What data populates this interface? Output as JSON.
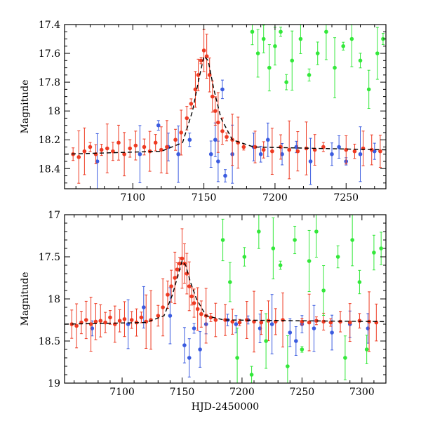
{
  "chart_data": [
    {
      "type": "scatter",
      "xlabel": "",
      "ylabel": "Magnitude",
      "xlim": [
        7052,
        7278
      ],
      "ylim": [
        18.54,
        17.4
      ],
      "inverted_y": true,
      "xticks": [
        7100,
        7150,
        7200,
        7250
      ],
      "yticks": [
        17.4,
        17.6,
        17.8,
        18,
        18.2,
        18.4
      ],
      "ytick_labels": [
        "17.4",
        "17.6",
        "17.8",
        "18",
        "18.2",
        "18.4"
      ],
      "grid": false,
      "legend": "none",
      "series": [
        {
          "color": "#3a5be0",
          "x": [
            7075,
            7105,
            7118,
            7125,
            7132,
            7140,
            7155,
            7158,
            7160,
            7163,
            7165,
            7170,
            7185,
            7190,
            7195,
            7205,
            7215,
            7225,
            7240,
            7245,
            7250,
            7260,
            7270
          ],
          "y": [
            18.35,
            18.3,
            18.1,
            18.25,
            18.3,
            18.2,
            18.3,
            18.2,
            18.35,
            17.85,
            18.45,
            18.3,
            18.25,
            18.3,
            18.2,
            18.3,
            18.25,
            18.35,
            18.3,
            18.25,
            18.35,
            18.3,
            18.28
          ]
        },
        {
          "color": "#ee3a22",
          "x": [
            7058,
            7062,
            7066,
            7070,
            7074,
            7078,
            7082,
            7086,
            7090,
            7094,
            7098,
            7102,
            7108,
            7112,
            7116,
            7120,
            7124,
            7130,
            7134,
            7138,
            7141,
            7144,
            7146,
            7148,
            7150,
            7152,
            7154,
            7156,
            7158,
            7160,
            7163,
            7166,
            7170,
            7174,
            7178,
            7186,
            7192,
            7198,
            7204,
            7210,
            7216,
            7222,
            7228,
            7234,
            7250,
            7256,
            7262,
            7268,
            7274
          ],
          "y": [
            18.3,
            18.32,
            18.28,
            18.25,
            18.3,
            18.27,
            18.26,
            18.28,
            18.22,
            18.3,
            18.26,
            18.24,
            18.25,
            18.28,
            18.22,
            18.27,
            18.25,
            18.2,
            18.15,
            18.05,
            17.95,
            17.85,
            17.75,
            17.65,
            17.58,
            17.62,
            17.75,
            17.9,
            18.0,
            18.08,
            18.14,
            18.18,
            18.2,
            18.22,
            18.25,
            18.25,
            18.27,
            18.28,
            18.25,
            18.27,
            18.28,
            18.26,
            18.27,
            18.25,
            18.27,
            18.28,
            18.26,
            18.27,
            18.28
          ]
        },
        {
          "color": "#33e83a",
          "x": [
            7184,
            7188,
            7192,
            7196,
            7200,
            7204,
            7208,
            7212,
            7218,
            7224,
            7230,
            7236,
            7242,
            7248,
            7254,
            7260,
            7266,
            7272,
            7276
          ],
          "y": [
            17.45,
            17.6,
            17.5,
            17.7,
            17.55,
            17.45,
            17.8,
            17.65,
            17.5,
            17.75,
            17.6,
            17.45,
            17.7,
            17.55,
            17.5,
            17.65,
            17.85,
            17.6,
            17.5
          ]
        }
      ],
      "model": {
        "x": [
          7052,
          7120,
          7135,
          7142,
          7146,
          7150,
          7153,
          7157,
          7162,
          7170,
          7185,
          7278
        ],
        "y": [
          18.3,
          18.28,
          18.22,
          18.0,
          17.8,
          17.62,
          17.65,
          17.85,
          18.05,
          18.2,
          18.25,
          18.27
        ]
      }
    },
    {
      "type": "scatter",
      "xlabel": "HJD-2450000",
      "ylabel": "Magnitude",
      "xlim": [
        7052,
        7320
      ],
      "ylim": [
        19,
        17
      ],
      "inverted_y": true,
      "xticks": [
        7100,
        7150,
        7200,
        7250,
        7300
      ],
      "yticks": [
        17,
        17.5,
        18,
        18.5,
        19
      ],
      "ytick_labels": [
        "17",
        "17.5",
        "18",
        "18.5",
        "19"
      ],
      "grid": false,
      "legend": "none",
      "series": [
        {
          "color": "#3a5be0",
          "x": [
            7075,
            7105,
            7118,
            7140,
            7152,
            7156,
            7160,
            7165,
            7170,
            7188,
            7195,
            7205,
            7215,
            7225,
            7240,
            7245,
            7250,
            7260,
            7275,
            7290,
            7305
          ],
          "y": [
            18.35,
            18.3,
            18.1,
            18.2,
            18.55,
            18.7,
            18.35,
            18.6,
            18.3,
            18.25,
            18.3,
            18.25,
            18.35,
            18.3,
            18.4,
            18.5,
            18.3,
            18.35,
            18.4,
            18.3,
            18.35
          ]
        },
        {
          "color": "#ee3a22",
          "x": [
            7058,
            7062,
            7066,
            7070,
            7074,
            7078,
            7082,
            7086,
            7090,
            7094,
            7098,
            7102,
            7108,
            7112,
            7116,
            7120,
            7124,
            7130,
            7134,
            7138,
            7141,
            7144,
            7146,
            7148,
            7150,
            7152,
            7154,
            7156,
            7158,
            7160,
            7163,
            7166,
            7170,
            7174,
            7178,
            7186,
            7192,
            7198,
            7204,
            7210,
            7216,
            7222,
            7228,
            7234,
            7250,
            7256,
            7262,
            7268,
            7274,
            7282,
            7290,
            7298,
            7306,
            7312
          ],
          "y": [
            18.3,
            18.32,
            18.28,
            18.25,
            18.3,
            18.27,
            18.26,
            18.28,
            18.22,
            18.3,
            18.26,
            18.24,
            18.25,
            18.28,
            18.22,
            18.27,
            18.25,
            18.2,
            18.1,
            17.95,
            17.85,
            17.75,
            17.65,
            17.58,
            17.52,
            17.58,
            17.7,
            17.85,
            17.97,
            18.05,
            18.12,
            18.18,
            18.2,
            18.22,
            18.25,
            18.25,
            18.27,
            18.28,
            18.25,
            18.27,
            18.28,
            18.26,
            18.27,
            18.25,
            18.27,
            18.28,
            18.26,
            18.27,
            18.28,
            18.27,
            18.28,
            18.26,
            18.27,
            18.28
          ]
        },
        {
          "color": "#33e83a",
          "x": [
            7184,
            7190,
            7196,
            7202,
            7208,
            7214,
            7220,
            7226,
            7232,
            7238,
            7244,
            7250,
            7256,
            7262,
            7268,
            7280,
            7286,
            7292,
            7298,
            7304,
            7310,
            7316
          ],
          "y": [
            17.3,
            17.8,
            18.7,
            17.5,
            18.9,
            17.2,
            18.5,
            17.4,
            17.6,
            18.8,
            17.3,
            18.6,
            17.55,
            17.2,
            17.9,
            17.5,
            18.7,
            17.3,
            17.8,
            18.6,
            17.45,
            17.4
          ]
        }
      ],
      "model": {
        "x": [
          7052,
          7120,
          7135,
          7142,
          7146,
          7150,
          7153,
          7157,
          7162,
          7170,
          7185,
          7320
        ],
        "y": [
          18.3,
          18.28,
          18.2,
          17.95,
          17.75,
          17.55,
          17.6,
          17.8,
          18.0,
          18.2,
          18.25,
          18.27
        ]
      }
    }
  ]
}
